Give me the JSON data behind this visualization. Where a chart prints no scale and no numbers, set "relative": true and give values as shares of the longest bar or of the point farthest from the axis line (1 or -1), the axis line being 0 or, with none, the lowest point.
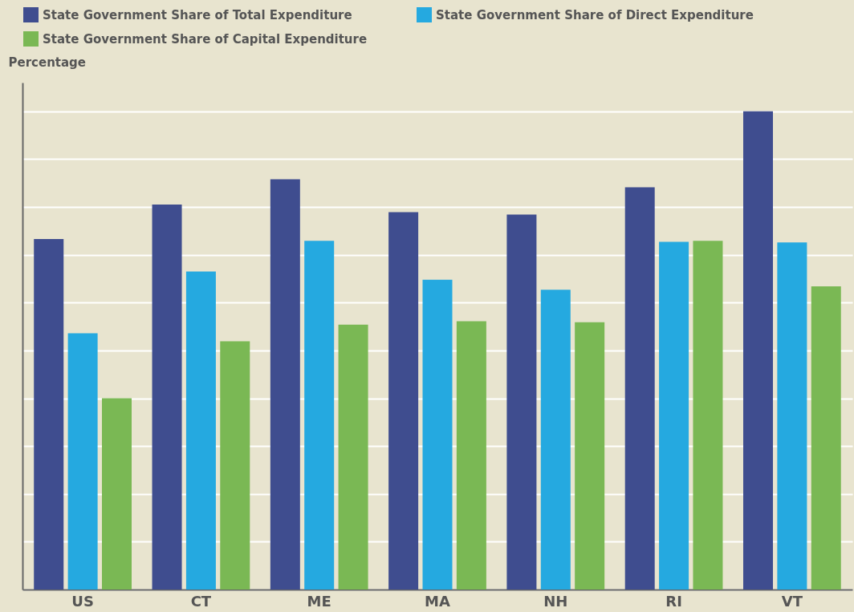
{
  "chart_data": {
    "type": "bar",
    "ylabel": "Percentage",
    "relative": true,
    "grid": "y",
    "legend": "top left",
    "categories": [
      "US",
      "CT",
      "ME",
      "MA",
      "NH",
      "RI",
      "VT"
    ],
    "series": [
      {
        "name": "State Government Share of Total Expenditure",
        "color": "#3f4d8f",
        "values": [
          0.733,
          0.805,
          0.858,
          0.789,
          0.784,
          0.841,
          1
        ]
      },
      {
        "name": "State Government Share of Direct Expenditure",
        "color": "#25a9e0",
        "values": [
          0.536,
          0.665,
          0.729,
          0.648,
          0.627,
          0.727,
          0.726
        ]
      },
      {
        "name": "State Government Share of Capital Expenditure",
        "color": "#7ab854",
        "values": [
          0.4,
          0.519,
          0.554,
          0.561,
          0.559,
          0.729,
          0.634
        ]
      }
    ]
  }
}
